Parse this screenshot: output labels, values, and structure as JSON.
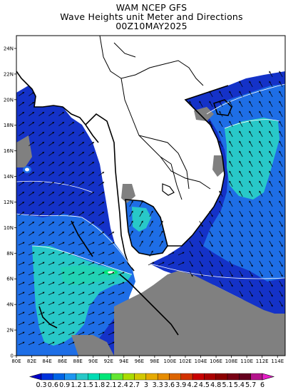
{
  "title": {
    "line1": "WAM NCEP GFS",
    "line2": "Wave Heights unit Meter and Directions",
    "line3": "00Z10MAY2025"
  },
  "axes": {
    "lat_labels": [
      "0",
      "2N",
      "4N",
      "6N",
      "8N",
      "10N",
      "12N",
      "14N",
      "16N",
      "18N",
      "20N",
      "22N",
      "24N"
    ],
    "lon_labels": [
      "80E",
      "82E",
      "84E",
      "86E",
      "88E",
      "90E",
      "92E",
      "94E",
      "96E",
      "98E",
      "100E",
      "102E",
      "104E",
      "106E",
      "108E",
      "110E",
      "112E",
      "114E"
    ],
    "lat_range": [
      0,
      25
    ],
    "lon_range": [
      80,
      115
    ]
  },
  "colorbar": {
    "labels": [
      "0.3",
      "0.6",
      "0.9",
      "1.2",
      "1.5",
      "1.8",
      "2.1",
      "2.4",
      "2.7",
      "3",
      "3.3",
      "3.6",
      "3.9",
      "4.2",
      "4.5",
      "4.8",
      "5.1",
      "5.4",
      "5.7",
      "6"
    ],
    "colors": [
      "#0000c8",
      "#0032dc",
      "#0064e6",
      "#1e96f0",
      "#28c8c8",
      "#00dcb4",
      "#00e678",
      "#64e632",
      "#aadc00",
      "#d2c800",
      "#e6aa00",
      "#e68c00",
      "#dc6400",
      "#d23200",
      "#c80000",
      "#aa0000",
      "#8c0000",
      "#780014",
      "#64001e",
      "#b4148c",
      "#e61ec8"
    ]
  },
  "legend_colors": {
    "land": "#ffffff",
    "coast": "#000000",
    "no_data": "#808080",
    "deep_blue": "#1432c8",
    "mid_blue": "#1e6ee6",
    "cyan": "#28c8c8"
  }
}
